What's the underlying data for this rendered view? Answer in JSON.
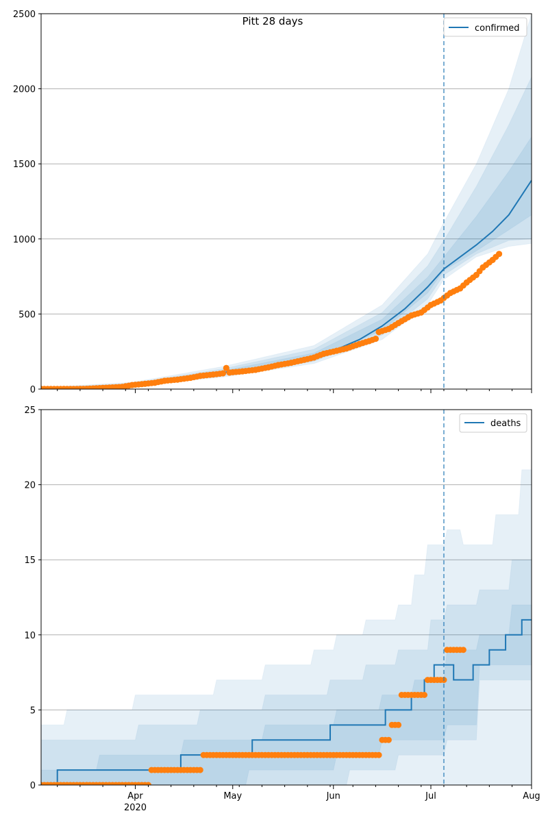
{
  "colors": {
    "model_line": "#1f77b4",
    "observed_points": "#ff7f0e",
    "band": "#1f77b4",
    "grid": "#b0b0b0",
    "vline": "#1f77b4"
  },
  "chart_data": [
    {
      "type": "line",
      "title": "Pitt 28 days",
      "legend": {
        "entries": [
          "confirmed"
        ],
        "placement": "top-right"
      },
      "grid": "horizontal",
      "xlim": [
        "2020-03-03",
        "2020-08-01"
      ],
      "ylim": [
        0,
        2500
      ],
      "y_ticks": [
        "0",
        "500",
        "1000",
        "1500",
        "2000",
        "2500"
      ],
      "forecast_start": "2020-07-05",
      "model": {
        "name": "confirmed",
        "points": [
          [
            "2020-03-03",
            0
          ],
          [
            "2020-03-10",
            1
          ],
          [
            "2020-03-17",
            3
          ],
          [
            "2020-03-24",
            12
          ],
          [
            "2020-03-31",
            30
          ],
          [
            "2020-04-07",
            50
          ],
          [
            "2020-04-14",
            70
          ],
          [
            "2020-04-21",
            90
          ],
          [
            "2020-04-28",
            110
          ],
          [
            "2020-05-05",
            130
          ],
          [
            "2020-05-12",
            155
          ],
          [
            "2020-05-19",
            180
          ],
          [
            "2020-05-26",
            215
          ],
          [
            "2020-06-02",
            265
          ],
          [
            "2020-06-09",
            330
          ],
          [
            "2020-06-16",
            420
          ],
          [
            "2020-06-23",
            535
          ],
          [
            "2020-06-30",
            680
          ],
          [
            "2020-07-05",
            800
          ],
          [
            "2020-07-10",
            880
          ],
          [
            "2020-07-15",
            960
          ],
          [
            "2020-07-20",
            1050
          ],
          [
            "2020-07-25",
            1160
          ],
          [
            "2020-08-01",
            1390
          ]
        ]
      },
      "bands": [
        {
          "lower": [
            [
              "2020-03-03",
              0
            ],
            [
              "2020-03-31",
              20
            ],
            [
              "2020-04-28",
              80
            ],
            [
              "2020-05-26",
              170
            ],
            [
              "2020-06-16",
              330
            ],
            [
              "2020-06-30",
              560
            ],
            [
              "2020-07-05",
              730
            ],
            [
              "2020-07-15",
              880
            ],
            [
              "2020-07-25",
              950
            ],
            [
              "2020-08-01",
              970
            ]
          ],
          "upper": [
            [
              "2020-03-03",
              10
            ],
            [
              "2020-03-31",
              45
            ],
            [
              "2020-04-28",
              150
            ],
            [
              "2020-05-26",
              290
            ],
            [
              "2020-06-16",
              560
            ],
            [
              "2020-06-30",
              900
            ],
            [
              "2020-07-05",
              1110
            ],
            [
              "2020-07-15",
              1500
            ],
            [
              "2020-07-25",
              2000
            ],
            [
              "2020-08-01",
              2500
            ]
          ]
        },
        {
          "lower": [
            [
              "2020-03-03",
              0
            ],
            [
              "2020-03-31",
              25
            ],
            [
              "2020-04-28",
              90
            ],
            [
              "2020-05-26",
              185
            ],
            [
              "2020-06-16",
              360
            ],
            [
              "2020-06-30",
              600
            ],
            [
              "2020-07-05",
              760
            ],
            [
              "2020-07-15",
              900
            ],
            [
              "2020-07-25",
              990
            ],
            [
              "2020-08-01",
              1000
            ]
          ],
          "upper": [
            [
              "2020-03-03",
              6
            ],
            [
              "2020-03-31",
              38
            ],
            [
              "2020-04-28",
              135
            ],
            [
              "2020-05-26",
              265
            ],
            [
              "2020-06-16",
              510
            ],
            [
              "2020-06-30",
              820
            ],
            [
              "2020-07-05",
              990
            ],
            [
              "2020-07-15",
              1350
            ],
            [
              "2020-07-25",
              1760
            ],
            [
              "2020-08-01",
              2080
            ]
          ]
        },
        {
          "lower": [
            [
              "2020-03-03",
              0
            ],
            [
              "2020-03-31",
              28
            ],
            [
              "2020-04-28",
              100
            ],
            [
              "2020-05-26",
              198
            ],
            [
              "2020-06-16",
              390
            ],
            [
              "2020-06-30",
              640
            ],
            [
              "2020-07-05",
              790
            ],
            [
              "2020-07-15",
              920
            ],
            [
              "2020-07-25",
              1060
            ],
            [
              "2020-08-01",
              1160
            ]
          ],
          "upper": [
            [
              "2020-03-03",
              3
            ],
            [
              "2020-03-31",
              33
            ],
            [
              "2020-04-28",
              122
            ],
            [
              "2020-05-26",
              240
            ],
            [
              "2020-06-16",
              465
            ],
            [
              "2020-06-30",
              745
            ],
            [
              "2020-07-05",
              880
            ],
            [
              "2020-07-15",
              1150
            ],
            [
              "2020-07-25",
              1450
            ],
            [
              "2020-08-01",
              1680
            ]
          ]
        }
      ],
      "observed": {
        "points": [
          [
            "2020-03-03",
            1
          ],
          [
            "2020-03-10",
            1
          ],
          [
            "2020-03-17",
            2
          ],
          [
            "2020-03-22",
            8
          ],
          [
            "2020-03-28",
            15
          ],
          [
            "2020-03-31",
            27
          ],
          [
            "2020-04-04",
            35
          ],
          [
            "2020-04-07",
            42
          ],
          [
            "2020-04-10",
            55
          ],
          [
            "2020-04-14",
            63
          ],
          [
            "2020-04-18",
            75
          ],
          [
            "2020-04-21",
            88
          ],
          [
            "2020-04-25",
            97
          ],
          [
            "2020-04-28",
            105
          ],
          [
            "2020-04-29",
            140
          ],
          [
            "2020-04-30",
            110
          ],
          [
            "2020-05-04",
            118
          ],
          [
            "2020-05-08",
            128
          ],
          [
            "2020-05-12",
            145
          ],
          [
            "2020-05-15",
            160
          ],
          [
            "2020-05-19",
            175
          ],
          [
            "2020-05-23",
            195
          ],
          [
            "2020-05-26",
            210
          ],
          [
            "2020-05-29",
            235
          ],
          [
            "2020-06-02",
            255
          ],
          [
            "2020-06-05",
            270
          ],
          [
            "2020-06-09",
            300
          ],
          [
            "2020-06-12",
            320
          ],
          [
            "2020-06-14",
            335
          ],
          [
            "2020-06-15",
            380
          ],
          [
            "2020-06-18",
            400
          ],
          [
            "2020-06-21",
            440
          ],
          [
            "2020-06-25",
            490
          ],
          [
            "2020-06-28",
            510
          ],
          [
            "2020-07-01",
            560
          ],
          [
            "2020-07-04",
            590
          ],
          [
            "2020-07-07",
            640
          ],
          [
            "2020-07-10",
            670
          ],
          [
            "2020-07-12",
            710
          ],
          [
            "2020-07-15",
            760
          ],
          [
            "2020-07-17",
            810
          ],
          [
            "2020-07-20",
            860
          ],
          [
            "2020-07-22",
            900
          ]
        ]
      }
    },
    {
      "type": "line",
      "title": "",
      "legend": {
        "entries": [
          "deaths"
        ],
        "placement": "top-right"
      },
      "grid": "horizontal",
      "xlim": [
        "2020-03-03",
        "2020-08-01"
      ],
      "ylim": [
        0,
        25
      ],
      "y_ticks": [
        "0",
        "5",
        "10",
        "15",
        "20",
        "25"
      ],
      "x_ticks": [
        {
          "date": "2020-04-01",
          "label": "Apr",
          "sublabel": "2020"
        },
        {
          "date": "2020-05-01",
          "label": "May",
          "sublabel": ""
        },
        {
          "date": "2020-06-01",
          "label": "Jun",
          "sublabel": ""
        },
        {
          "date": "2020-07-01",
          "label": "Jul",
          "sublabel": ""
        },
        {
          "date": "2020-08-01",
          "label": "Aug",
          "sublabel": ""
        }
      ],
      "forecast_start": "2020-07-05",
      "model": {
        "name": "deaths",
        "steps": [
          [
            "2020-03-03",
            0
          ],
          [
            "2020-03-08",
            1
          ],
          [
            "2020-04-15",
            2
          ],
          [
            "2020-05-07",
            3
          ],
          [
            "2020-05-31",
            4
          ],
          [
            "2020-06-17",
            5
          ],
          [
            "2020-06-25",
            6
          ],
          [
            "2020-06-29",
            7
          ],
          [
            "2020-07-02",
            8
          ],
          [
            "2020-07-08",
            7
          ],
          [
            "2020-07-14",
            8
          ],
          [
            "2020-07-19",
            9
          ],
          [
            "2020-07-24",
            10
          ],
          [
            "2020-07-29",
            11
          ],
          [
            "2020-08-02",
            12
          ],
          [
            "2020-08-05",
            13
          ]
        ]
      },
      "bands": [
        {
          "lower": [
            [
              "2020-03-03",
              0
            ],
            [
              "2020-07-05",
              0
            ],
            [
              "2020-08-01",
              8
            ]
          ],
          "upper": [
            [
              "2020-03-03",
              4
            ],
            [
              "2020-03-10",
              5
            ],
            [
              "2020-03-31",
              6
            ],
            [
              "2020-04-25",
              7
            ],
            [
              "2020-05-10",
              8
            ],
            [
              "2020-05-25",
              9
            ],
            [
              "2020-06-01",
              10
            ],
            [
              "2020-06-10",
              11
            ],
            [
              "2020-06-20",
              12
            ],
            [
              "2020-06-25",
              14
            ],
            [
              "2020-06-29",
              16
            ],
            [
              "2020-07-05",
              17
            ],
            [
              "2020-07-10",
              16
            ],
            [
              "2020-07-20",
              18
            ],
            [
              "2020-07-28",
              21
            ],
            [
              "2020-08-01",
              25
            ]
          ]
        },
        {
          "lower": [
            [
              "2020-03-03",
              0
            ],
            [
              "2020-05-05",
              0
            ],
            [
              "2020-06-05",
              1
            ],
            [
              "2020-06-20",
              2
            ],
            [
              "2020-07-05",
              3
            ],
            [
              "2020-07-15",
              7
            ],
            [
              "2020-08-01",
              8
            ]
          ],
          "upper": [
            [
              "2020-03-03",
              3
            ],
            [
              "2020-04-01",
              4
            ],
            [
              "2020-04-20",
              5
            ],
            [
              "2020-05-10",
              6
            ],
            [
              "2020-05-30",
              7
            ],
            [
              "2020-06-10",
              8
            ],
            [
              "2020-06-20",
              9
            ],
            [
              "2020-06-30",
              11
            ],
            [
              "2020-07-05",
              12
            ],
            [
              "2020-07-15",
              13
            ],
            [
              "2020-07-25",
              15
            ],
            [
              "2020-08-01",
              20
            ]
          ]
        },
        {
          "lower": [
            [
              "2020-03-03",
              0
            ],
            [
              "2020-04-10",
              0
            ],
            [
              "2020-05-05",
              1
            ],
            [
              "2020-06-01",
              2
            ],
            [
              "2020-06-15",
              3
            ],
            [
              "2020-07-05",
              4
            ],
            [
              "2020-07-15",
              8
            ],
            [
              "2020-08-01",
              9
            ]
          ],
          "upper": [
            [
              "2020-03-03",
              1
            ],
            [
              "2020-03-20",
              2
            ],
            [
              "2020-04-15",
              3
            ],
            [
              "2020-05-10",
              4
            ],
            [
              "2020-06-01",
              5
            ],
            [
              "2020-06-15",
              6
            ],
            [
              "2020-06-25",
              7
            ],
            [
              "2020-07-05",
              9
            ],
            [
              "2020-07-15",
              10
            ],
            [
              "2020-07-25",
              12
            ],
            [
              "2020-08-01",
              16
            ]
          ]
        }
      ],
      "observed": {
        "segments": [
          {
            "from": "2020-03-03",
            "to": "2020-04-05",
            "value": 0
          },
          {
            "from": "2020-04-06",
            "to": "2020-04-21",
            "value": 1
          },
          {
            "from": "2020-04-22",
            "to": "2020-06-15",
            "value": 2
          },
          {
            "from": "2020-06-16",
            "to": "2020-06-18",
            "value": 3
          },
          {
            "from": "2020-06-19",
            "to": "2020-06-21",
            "value": 4
          },
          {
            "from": "2020-06-22",
            "to": "2020-06-29",
            "value": 6
          },
          {
            "from": "2020-06-30",
            "to": "2020-07-05",
            "value": 7
          },
          {
            "from": "2020-07-06",
            "to": "2020-07-11",
            "value": 9
          }
        ]
      }
    }
  ]
}
